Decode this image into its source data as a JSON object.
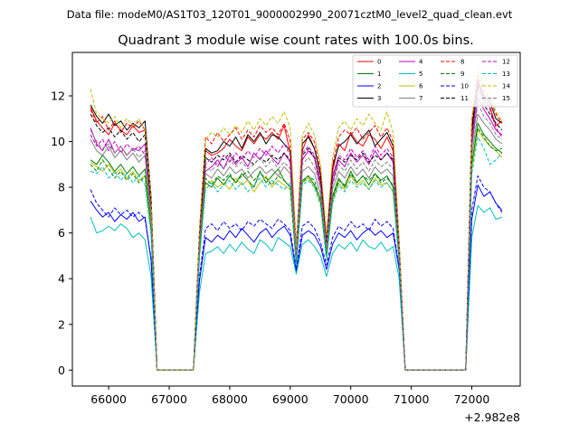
{
  "chart_data": {
    "type": "line",
    "suptitle": "Data file: modeM0/AS1T03_120T01_9000002990_20071cztM0_level2_quad_clean.evt",
    "title": "Quadrant 3 module wise count rates with 100.0s bins.",
    "xlabel": "",
    "ylabel": "",
    "x_offset_label": "+2.982e8",
    "x_offset": 298200000,
    "xlim": [
      65400,
      72800
    ],
    "ylim": [
      -0.7,
      13.9
    ],
    "xticks": [
      66000,
      67000,
      68000,
      69000,
      70000,
      71000,
      72000
    ],
    "xtick_labels": [
      "66000",
      "67000",
      "68000",
      "69000",
      "70000",
      "71000",
      "72000"
    ],
    "yticks": [
      0,
      2,
      4,
      6,
      8,
      10,
      12
    ],
    "ytick_labels": [
      "0",
      "2",
      "4",
      "6",
      "8",
      "10",
      "12"
    ],
    "grid": false,
    "legend": "top-right",
    "legend_columns": 4,
    "x": [
      65700,
      65800,
      65900,
      66000,
      66100,
      66200,
      66300,
      66400,
      66500,
      66600,
      66700,
      66800,
      66900,
      67000,
      67100,
      67200,
      67300,
      67400,
      67500,
      67600,
      67700,
      67800,
      67900,
      68000,
      68100,
      68200,
      68300,
      68400,
      68500,
      68600,
      68700,
      68800,
      68900,
      69000,
      69100,
      69200,
      69300,
      69400,
      69500,
      69600,
      69700,
      69800,
      69900,
      70000,
      70100,
      70200,
      70300,
      70400,
      70500,
      70600,
      70700,
      70800,
      70900,
      71000,
      71100,
      71200,
      71300,
      71400,
      71500,
      71600,
      71700,
      71800,
      71900,
      72000,
      72100,
      72200,
      72300,
      72400,
      72500
    ],
    "series": [
      {
        "name": "0",
        "color": "#ff0000",
        "dash": "solid",
        "values": [
          11.5,
          10.9,
          10.6,
          10.3,
          10.8,
          10.5,
          10.3,
          10.7,
          10.4,
          10.5,
          7.5,
          0,
          0,
          0,
          0,
          0,
          0,
          0,
          5.9,
          9.6,
          9.4,
          9.5,
          9.7,
          10.1,
          9.8,
          9.6,
          10.2,
          9.9,
          10.3,
          10.1,
          10.4,
          10.1,
          10.7,
          9.5,
          5.2,
          9.6,
          10.3,
          9.7,
          8.5,
          5.6,
          8.7,
          9.9,
          9.6,
          10.4,
          10.0,
          9.8,
          10.3,
          10.1,
          9.7,
          10.2,
          9.6,
          5.4,
          0,
          0,
          0,
          0,
          0,
          0,
          0,
          0,
          0,
          0,
          0,
          10.4,
          12.7,
          11.9,
          11.5,
          10.7,
          10.9
        ]
      },
      {
        "name": "1",
        "color": "#008000",
        "dash": "solid",
        "values": [
          9.2,
          9.0,
          9.4,
          9.1,
          8.7,
          9.0,
          8.6,
          8.9,
          8.5,
          8.8,
          6.4,
          0,
          0,
          0,
          0,
          0,
          0,
          0,
          5.1,
          8.2,
          8.0,
          8.4,
          8.1,
          8.5,
          8.2,
          8.6,
          8.3,
          8.0,
          8.7,
          8.2,
          8.5,
          8.8,
          8.3,
          8.0,
          4.6,
          8.3,
          8.5,
          8.1,
          7.5,
          5.0,
          7.6,
          8.4,
          8.0,
          8.7,
          8.2,
          8.5,
          8.1,
          8.6,
          8.3,
          8.5,
          8.0,
          4.8,
          0,
          0,
          0,
          0,
          0,
          0,
          0,
          0,
          0,
          0,
          0,
          9.0,
          10.8,
          10.3,
          10.0,
          9.7,
          9.5
        ]
      },
      {
        "name": "2",
        "color": "#0000ff",
        "dash": "solid",
        "values": [
          7.4,
          7.0,
          6.7,
          6.9,
          6.5,
          6.8,
          6.6,
          6.9,
          6.5,
          6.7,
          4.8,
          0,
          0,
          0,
          0,
          0,
          0,
          0,
          3.9,
          5.8,
          5.6,
          5.9,
          5.7,
          6.1,
          5.8,
          6.2,
          5.9,
          5.6,
          6.0,
          6.2,
          5.8,
          6.1,
          6.3,
          5.9,
          4.3,
          5.9,
          6.1,
          5.9,
          5.4,
          4.4,
          5.5,
          6.0,
          5.8,
          6.1,
          5.7,
          6.0,
          6.2,
          5.9,
          6.1,
          5.8,
          6.0,
          4.4,
          0,
          0,
          0,
          0,
          0,
          0,
          0,
          0,
          0,
          0,
          0,
          6.6,
          8.1,
          7.6,
          7.8,
          7.3,
          7.0
        ]
      },
      {
        "name": "3",
        "color": "#000000",
        "dash": "solid",
        "values": [
          11.6,
          11.1,
          10.8,
          11.2,
          10.7,
          10.9,
          10.5,
          10.8,
          10.6,
          10.9,
          7.6,
          0,
          0,
          0,
          0,
          0,
          0,
          0,
          6.0,
          9.7,
          9.5,
          9.6,
          10.0,
          9.8,
          10.2,
          9.7,
          10.3,
          10.0,
          10.4,
          9.9,
          10.3,
          10.2,
          9.9,
          9.6,
          5.3,
          9.9,
          10.2,
          9.7,
          8.6,
          5.7,
          8.9,
          9.8,
          10.0,
          10.3,
          9.9,
          10.2,
          10.5,
          9.8,
          10.1,
          10.4,
          9.8,
          5.5,
          0,
          0,
          0,
          0,
          0,
          0,
          0,
          0,
          0,
          0,
          0,
          10.6,
          12.6,
          12.0,
          11.7,
          11.0,
          10.8
        ]
      },
      {
        "name": "4",
        "color": "#bf00bf",
        "dash": "solid",
        "values": [
          10.6,
          9.9,
          9.6,
          10.1,
          9.5,
          9.8,
          9.4,
          9.7,
          9.6,
          9.9,
          7.0,
          0,
          0,
          0,
          0,
          0,
          0,
          0,
          5.5,
          8.7,
          8.9,
          9.2,
          8.8,
          9.4,
          9.0,
          9.3,
          8.9,
          9.5,
          9.2,
          9.6,
          9.3,
          9.0,
          9.5,
          9.1,
          5.0,
          9.2,
          9.6,
          9.3,
          8.0,
          5.4,
          8.2,
          9.2,
          8.9,
          9.5,
          9.1,
          9.4,
          9.0,
          9.6,
          9.2,
          9.5,
          9.1,
          5.1,
          0,
          0,
          0,
          0,
          0,
          0,
          0,
          0,
          0,
          0,
          0,
          9.8,
          11.9,
          11.4,
          11.0,
          10.5,
          10.3
        ]
      },
      {
        "name": "5",
        "color": "#00bfbf",
        "dash": "solid",
        "values": [
          6.7,
          6.0,
          6.1,
          6.3,
          6.1,
          6.4,
          6.2,
          5.8,
          6.0,
          5.7,
          4.1,
          0,
          0,
          0,
          0,
          0,
          0,
          0,
          3.4,
          5.1,
          5.2,
          5.4,
          5.1,
          5.5,
          5.2,
          5.6,
          5.3,
          5.1,
          5.7,
          5.5,
          5.2,
          5.8,
          5.6,
          5.4,
          4.2,
          5.5,
          5.7,
          5.4,
          5.0,
          4.1,
          5.1,
          5.5,
          5.3,
          5.6,
          5.2,
          5.7,
          5.4,
          5.3,
          5.6,
          5.2,
          5.4,
          4.0,
          0,
          0,
          0,
          0,
          0,
          0,
          0,
          0,
          0,
          0,
          0,
          5.8,
          7.2,
          6.9,
          7.1,
          6.6,
          6.7
        ]
      },
      {
        "name": "6",
        "color": "#bfbf00",
        "dash": "solid",
        "values": [
          9.1,
          8.9,
          8.7,
          9.0,
          8.6,
          8.8,
          8.4,
          8.7,
          8.3,
          8.5,
          6.2,
          0,
          0,
          0,
          0,
          0,
          0,
          0,
          5.0,
          8.1,
          8.3,
          8.0,
          8.2,
          7.9,
          8.4,
          8.1,
          8.3,
          7.8,
          8.2,
          8.5,
          8.0,
          8.3,
          8.1,
          7.9,
          4.6,
          8.2,
          8.4,
          8.0,
          7.3,
          4.9,
          7.4,
          8.2,
          7.9,
          8.5,
          8.1,
          8.3,
          7.9,
          8.4,
          8.1,
          8.2,
          7.8,
          4.7,
          0,
          0,
          0,
          0,
          0,
          0,
          0,
          0,
          0,
          0,
          0,
          8.8,
          10.5,
          10.1,
          9.8,
          9.6,
          9.3
        ]
      },
      {
        "name": "7",
        "color": "#808080",
        "dash": "solid",
        "values": [
          10.1,
          9.6,
          9.4,
          9.8,
          9.3,
          9.6,
          9.2,
          9.5,
          9.1,
          9.4,
          6.7,
          0,
          0,
          0,
          0,
          0,
          0,
          0,
          5.3,
          8.6,
          8.4,
          8.8,
          8.5,
          8.9,
          8.6,
          8.8,
          8.4,
          8.7,
          8.9,
          8.6,
          8.8,
          8.5,
          8.9,
          8.6,
          4.8,
          8.7,
          8.9,
          8.6,
          7.7,
          5.2,
          7.9,
          8.7,
          8.4,
          8.9,
          8.5,
          8.8,
          8.4,
          8.9,
          8.6,
          8.8,
          8.5,
          4.9,
          0,
          0,
          0,
          0,
          0,
          0,
          0,
          0,
          0,
          0,
          0,
          9.4,
          11.2,
          10.8,
          10.5,
          10.1,
          9.9
        ]
      },
      {
        "name": "8",
        "color": "#ff0000",
        "dash": "dashed",
        "values": [
          11.4,
          10.8,
          11.1,
          10.5,
          10.9,
          10.4,
          10.8,
          10.6,
          10.9,
          10.5,
          7.4,
          0,
          0,
          0,
          0,
          0,
          0,
          0,
          6.1,
          10.2,
          9.9,
          10.4,
          10.0,
          10.3,
          10.6,
          10.1,
          10.5,
          10.2,
          10.7,
          10.4,
          10.6,
          10.3,
          10.8,
          10.0,
          5.4,
          10.1,
          10.4,
          10.0,
          8.8,
          5.8,
          9.0,
          10.2,
          10.5,
          10.3,
          10.6,
          10.1,
          10.4,
          10.7,
          10.2,
          10.6,
          10.0,
          5.6,
          0,
          0,
          0,
          0,
          0,
          0,
          0,
          0,
          0,
          0,
          0,
          10.9,
          12.9,
          12.2,
          11.8,
          11.2,
          10.8
        ]
      },
      {
        "name": "9",
        "color": "#008000",
        "dash": "dashed",
        "values": [
          9.0,
          8.7,
          9.2,
          8.8,
          8.4,
          8.7,
          8.3,
          8.6,
          8.2,
          8.5,
          6.1,
          0,
          0,
          0,
          0,
          0,
          0,
          0,
          5.1,
          8.4,
          8.1,
          8.5,
          8.3,
          8.6,
          8.2,
          8.5,
          8.7,
          8.3,
          8.6,
          8.4,
          8.1,
          8.5,
          8.3,
          8.0,
          4.7,
          8.2,
          8.5,
          8.3,
          7.4,
          5.0,
          7.5,
          8.3,
          8.1,
          8.6,
          8.2,
          8.5,
          8.3,
          8.6,
          8.2,
          8.4,
          8.1,
          4.8,
          0,
          0,
          0,
          0,
          0,
          0,
          0,
          0,
          0,
          0,
          0,
          9.1,
          10.6,
          10.2,
          9.8,
          9.6,
          9.7
        ]
      },
      {
        "name": "10",
        "color": "#0000ff",
        "dash": "dashed",
        "values": [
          7.9,
          7.3,
          7.0,
          6.7,
          7.1,
          6.8,
          7.0,
          6.7,
          6.9,
          6.6,
          4.9,
          0,
          0,
          0,
          0,
          0,
          0,
          0,
          4.1,
          6.2,
          6.4,
          6.1,
          6.5,
          6.2,
          6.4,
          6.1,
          6.5,
          6.3,
          6.6,
          6.4,
          6.2,
          6.6,
          6.4,
          6.1,
          4.4,
          6.3,
          6.5,
          6.2,
          5.6,
          4.6,
          5.8,
          6.3,
          6.1,
          6.5,
          6.2,
          6.4,
          6.1,
          6.6,
          6.3,
          6.5,
          6.2,
          4.5,
          0,
          0,
          0,
          0,
          0,
          0,
          0,
          0,
          0,
          0,
          0,
          7.0,
          8.5,
          8.0,
          7.8,
          7.3,
          6.9
        ]
      },
      {
        "name": "11",
        "color": "#000000",
        "dash": "dashed",
        "values": [
          11.2,
          10.7,
          10.4,
          10.6,
          10.2,
          10.5,
          10.1,
          10.4,
          10.0,
          10.3,
          7.2,
          0,
          0,
          0,
          0,
          0,
          0,
          0,
          5.8,
          9.3,
          9.1,
          9.4,
          9.2,
          9.5,
          9.1,
          9.4,
          9.2,
          9.0,
          9.3,
          9.1,
          9.4,
          9.2,
          9.5,
          9.2,
          5.2,
          9.4,
          9.7,
          9.3,
          8.3,
          5.6,
          8.5,
          9.3,
          9.1,
          9.4,
          9.2,
          9.5,
          9.1,
          9.4,
          9.2,
          9.5,
          9.2,
          5.3,
          0,
          0,
          0,
          0,
          0,
          0,
          0,
          0,
          0,
          0,
          0,
          10.2,
          12.4,
          11.6,
          11.2,
          10.8,
          10.5
        ]
      },
      {
        "name": "12",
        "color": "#bf00bf",
        "dash": "dashed",
        "values": [
          10.3,
          9.8,
          10.1,
          9.6,
          10.0,
          9.5,
          9.9,
          9.6,
          9.8,
          9.4,
          6.9,
          0,
          0,
          0,
          0,
          0,
          0,
          0,
          5.6,
          9.0,
          9.3,
          8.9,
          9.4,
          9.1,
          9.5,
          9.2,
          9.6,
          9.3,
          9.7,
          9.4,
          9.8,
          9.5,
          9.9,
          9.4,
          5.1,
          9.5,
          9.8,
          9.4,
          8.2,
          5.5,
          8.4,
          9.4,
          9.2,
          9.7,
          9.3,
          9.6,
          9.2,
          9.8,
          9.4,
          9.7,
          9.3,
          5.2,
          0,
          0,
          0,
          0,
          0,
          0,
          0,
          0,
          0,
          0,
          0,
          10.0,
          12.5,
          11.8,
          11.4,
          10.6,
          10.2
        ]
      },
      {
        "name": "13",
        "color": "#00bfbf",
        "dash": "dashed",
        "values": [
          8.7,
          8.6,
          8.9,
          8.4,
          8.7,
          8.3,
          8.6,
          8.2,
          8.5,
          8.1,
          5.9,
          0,
          0,
          0,
          0,
          0,
          0,
          0,
          4.9,
          7.9,
          8.2,
          7.8,
          8.1,
          8.3,
          7.9,
          8.2,
          7.8,
          8.1,
          8.4,
          8.0,
          8.3,
          8.1,
          7.9,
          8.2,
          4.6,
          8.1,
          8.3,
          8.0,
          7.2,
          4.8,
          7.3,
          8.1,
          7.8,
          8.3,
          8.0,
          8.2,
          7.9,
          8.3,
          8.0,
          8.2,
          7.8,
          4.7,
          0,
          0,
          0,
          0,
          0,
          0,
          0,
          0,
          0,
          0,
          0,
          8.6,
          10.2,
          9.7,
          9.0,
          9.2,
          9.5
        ]
      },
      {
        "name": "14",
        "color": "#bfbf00",
        "dash": "dashed",
        "values": [
          12.3,
          11.2,
          11.0,
          10.8,
          11.1,
          10.6,
          11.0,
          10.7,
          11.0,
          10.5,
          7.6,
          0,
          0,
          0,
          0,
          0,
          0,
          0,
          6.2,
          10.1,
          10.4,
          10.2,
          10.6,
          10.3,
          10.7,
          10.4,
          10.9,
          10.5,
          11.0,
          10.7,
          11.1,
          10.8,
          11.3,
          10.6,
          5.4,
          10.3,
          10.8,
          10.3,
          9.0,
          5.9,
          9.3,
          10.6,
          10.9,
          10.5,
          11.0,
          10.7,
          11.2,
          10.8,
          10.5,
          11.3,
          10.4,
          5.7,
          0,
          0,
          0,
          0,
          0,
          0,
          0,
          0,
          0,
          0,
          0,
          11.0,
          13.2,
          12.4,
          12.0,
          11.3,
          10.9
        ]
      },
      {
        "name": "15",
        "color": "#808080",
        "dash": "dashed",
        "values": [
          10.5,
          10.0,
          9.7,
          9.9,
          9.5,
          9.8,
          9.4,
          9.7,
          9.3,
          9.6,
          6.9,
          0,
          0,
          0,
          0,
          0,
          0,
          0,
          5.5,
          8.9,
          8.7,
          9.1,
          8.8,
          9.2,
          8.9,
          9.1,
          8.8,
          9.0,
          9.3,
          8.9,
          9.2,
          8.8,
          9.1,
          8.8,
          5.0,
          9.0,
          9.3,
          8.9,
          8.0,
          5.3,
          8.1,
          9.0,
          8.7,
          9.2,
          8.8,
          9.1,
          8.7,
          9.2,
          8.9,
          9.1,
          8.8,
          5.0,
          0,
          0,
          0,
          0,
          0,
          0,
          0,
          0,
          0,
          0,
          0,
          9.7,
          11.7,
          11.1,
          10.8,
          10.3,
          10.1
        ]
      }
    ]
  }
}
